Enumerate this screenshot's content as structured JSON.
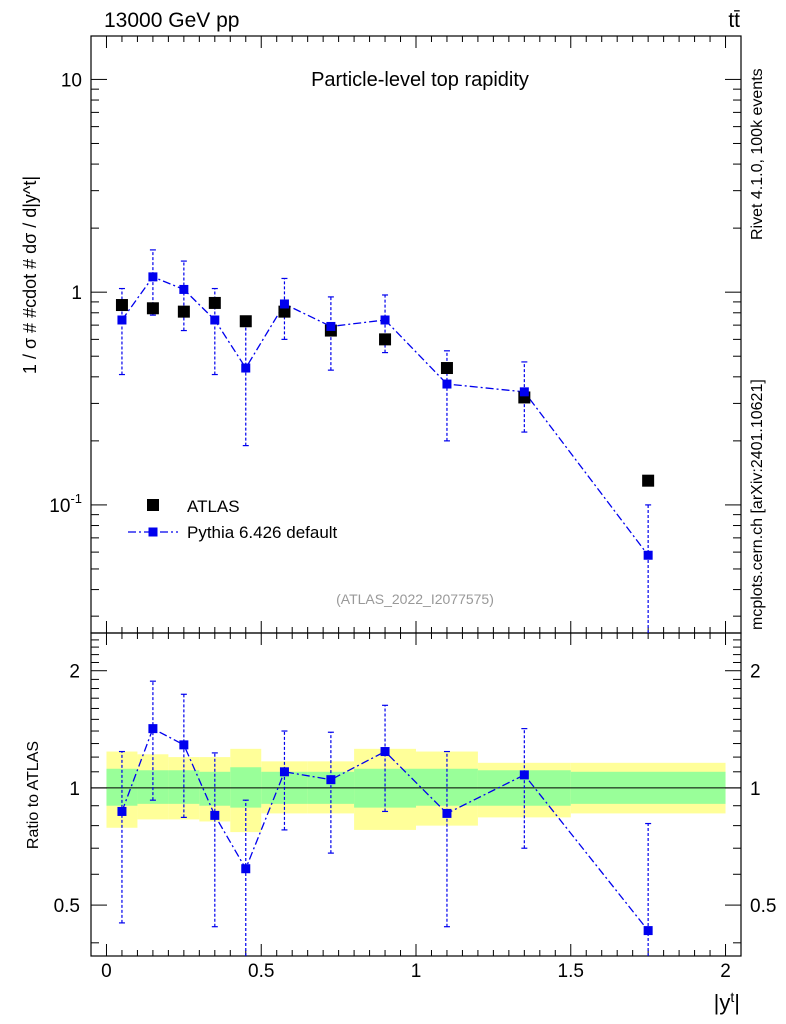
{
  "header": {
    "energy_label": "13000 GeV pp",
    "process_label": "tt̄"
  },
  "side_text": {
    "rivet": "Rivet 4.1.0,  100k events",
    "mcplots": "mcplots.cern.ch [arXiv:2401.10621]"
  },
  "colors": {
    "atlas": "#000000",
    "pythia": "#0000ee",
    "band_inner": "#99ff99",
    "band_outer": "#ffff99",
    "ref_id_text": "#999999",
    "side_text": "#888888"
  },
  "chart_data": [
    {
      "type": "scatter",
      "panel": "main",
      "title": "Particle-level top rapidity",
      "ylabel": "1 / σ # #cdot # dσ / d|y^t|",
      "xlabel": "|y^t|",
      "yscale": "log",
      "ylim": [
        0.025,
        16
      ],
      "xlim": [
        -0.05,
        2.05
      ],
      "x_ticks": [
        "0",
        "0.5",
        "1",
        "1.5",
        "2"
      ],
      "y_ticks": [
        "10^-1",
        "1",
        "10"
      ],
      "analysis_id": "(ATLAS_2022_I2077575)",
      "legend": {
        "position": "lower-left",
        "entries": [
          "ATLAS",
          "Pythia 6.426 default"
        ]
      },
      "series": [
        {
          "name": "ATLAS",
          "marker": "square",
          "x": [
            0.05,
            0.15,
            0.25,
            0.35,
            0.45,
            0.575,
            0.725,
            0.9,
            1.1,
            1.35,
            1.75
          ],
          "y": [
            0.87,
            0.84,
            0.81,
            0.89,
            0.73,
            0.81,
            0.66,
            0.6,
            0.44,
            0.32,
            0.13
          ]
        },
        {
          "name": "Pythia 6.426 default",
          "marker": "square",
          "line": "dash-dot",
          "x": [
            0.05,
            0.15,
            0.25,
            0.35,
            0.45,
            0.575,
            0.725,
            0.9,
            1.1,
            1.35,
            1.75
          ],
          "y": [
            0.74,
            1.18,
            1.03,
            0.74,
            0.44,
            0.88,
            0.69,
            0.74,
            0.37,
            0.34,
            0.058
          ],
          "y_low": [
            0.41,
            0.78,
            0.66,
            0.41,
            0.19,
            0.6,
            0.43,
            0.52,
            0.2,
            0.22,
            0.02
          ],
          "y_high": [
            1.04,
            1.58,
            1.4,
            1.04,
            0.71,
            1.16,
            0.95,
            0.97,
            0.53,
            0.47,
            0.1
          ]
        }
      ]
    },
    {
      "type": "line",
      "panel": "ratio",
      "ylabel": "Ratio to ATLAS",
      "xlabel": "|y^t|",
      "yscale": "log",
      "ylim": [
        0.37,
        2.5
      ],
      "y_ticks": [
        "0.5",
        "1",
        "2"
      ],
      "bins": [
        0.0,
        0.1,
        0.2,
        0.3,
        0.4,
        0.5,
        0.65,
        0.8,
        1.0,
        1.2,
        1.5,
        2.0
      ],
      "band_inner": {
        "low": [
          0.9,
          0.91,
          0.91,
          0.9,
          0.89,
          0.91,
          0.91,
          0.89,
          0.9,
          0.9,
          0.91
        ],
        "high": [
          1.12,
          1.11,
          1.11,
          1.1,
          1.13,
          1.1,
          1.1,
          1.12,
          1.12,
          1.11,
          1.1
        ]
      },
      "band_outer": {
        "low": [
          0.79,
          0.83,
          0.83,
          0.82,
          0.77,
          0.86,
          0.86,
          0.78,
          0.8,
          0.84,
          0.86
        ],
        "high": [
          1.24,
          1.22,
          1.2,
          1.2,
          1.26,
          1.17,
          1.17,
          1.26,
          1.24,
          1.16,
          1.16
        ]
      },
      "series": [
        {
          "name": "Pythia 6.426 default",
          "x": [
            0.05,
            0.15,
            0.25,
            0.35,
            0.45,
            0.575,
            0.725,
            0.9,
            1.1,
            1.35,
            1.75
          ],
          "y": [
            0.87,
            1.42,
            1.29,
            0.85,
            0.62,
            1.1,
            1.05,
            1.24,
            0.86,
            1.08,
            0.43
          ],
          "y_low": [
            0.45,
            0.93,
            0.84,
            0.44,
            0.37,
            0.78,
            0.68,
            0.87,
            0.44,
            0.7,
            0.37
          ],
          "y_high": [
            1.24,
            1.88,
            1.74,
            1.23,
            0.93,
            1.4,
            1.39,
            1.63,
            1.24,
            1.42,
            0.81
          ]
        }
      ]
    }
  ]
}
